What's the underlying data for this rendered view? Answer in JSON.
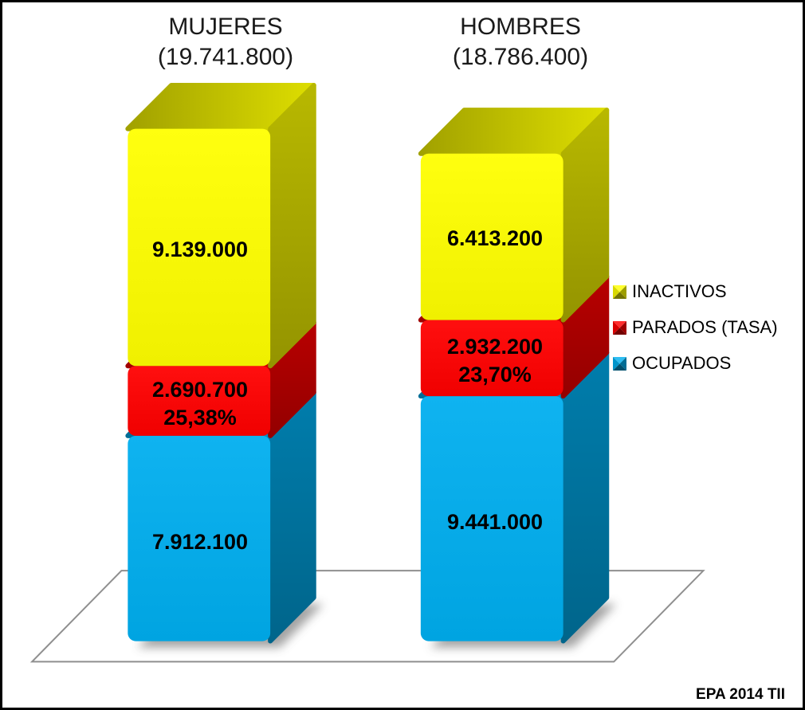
{
  "titles": {
    "left": {
      "name": "MUJERES",
      "total": "(19.741.800)"
    },
    "right": {
      "name": "HOMBRES",
      "total": "(18.786.400)"
    }
  },
  "legend": [
    {
      "label": "INACTIVOS",
      "color": "#FFFF00"
    },
    {
      "label": "PARADOS (TASA)",
      "color": "#FF0000"
    },
    {
      "label": "OCUPADOS",
      "color": "#00AEEF"
    }
  ],
  "footer": "EPA 2014 TII",
  "chart_data": {
    "type": "bar",
    "subtype": "3d-stacked",
    "categories": [
      "MUJERES",
      "HOMBRES"
    ],
    "category_totals": [
      "19.741.800",
      "18.786.400"
    ],
    "series": [
      {
        "name": "OCUPADOS",
        "color": "#00AEEF",
        "values": [
          7912100,
          9441000
        ],
        "labels": [
          "7.912.100",
          "9.441.000"
        ]
      },
      {
        "name": "PARADOS (TASA)",
        "color": "#FF0000",
        "values": [
          2690700,
          2932200
        ],
        "labels": [
          "2.690.700",
          "2.932.200"
        ],
        "rate_labels": [
          "25,38%",
          "23,70%"
        ]
      },
      {
        "name": "INACTIVOS",
        "color": "#FFFF00",
        "values": [
          9139000,
          6413200
        ],
        "labels": [
          "9.139.000",
          "6.413.200"
        ]
      }
    ],
    "legend_position": "right",
    "grid": false,
    "source_note": "EPA 2014 TII"
  }
}
